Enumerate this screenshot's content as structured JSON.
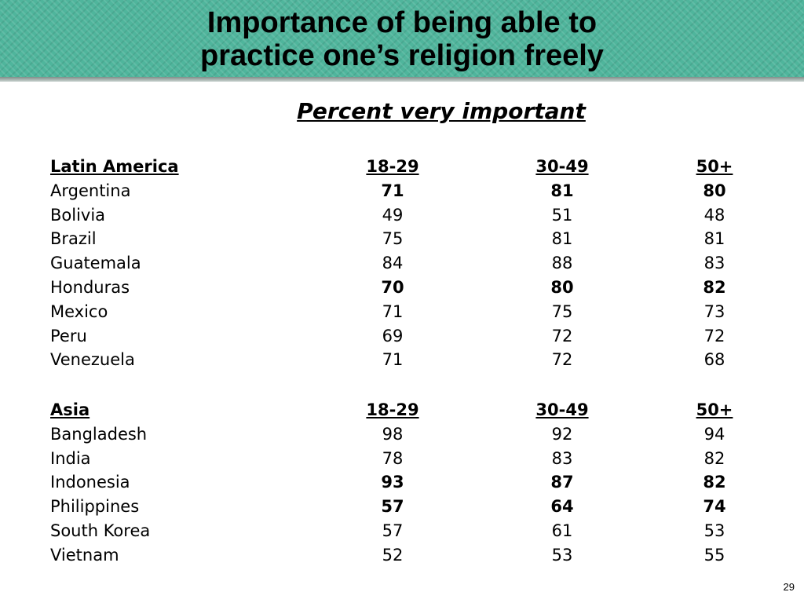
{
  "title": {
    "line1": "Importance of being able to",
    "line2": "practice one’s religion freely"
  },
  "subtitle": "Percent very important",
  "sections": [
    {
      "region": "Latin America",
      "columns": [
        "18-29",
        "30-49",
        "50+"
      ],
      "rows": [
        {
          "country": "Argentina",
          "values": [
            "71",
            "81",
            "80"
          ],
          "bold": true
        },
        {
          "country": "Bolivia",
          "values": [
            "49",
            "51",
            "48"
          ],
          "bold": false
        },
        {
          "country": "Brazil",
          "values": [
            "75",
            "81",
            "81"
          ],
          "bold": false
        },
        {
          "country": "Guatemala",
          "values": [
            "84",
            "88",
            "83"
          ],
          "bold": false
        },
        {
          "country": "Honduras",
          "values": [
            "70",
            "80",
            "82"
          ],
          "bold": true
        },
        {
          "country": "Mexico",
          "values": [
            "71",
            "75",
            "73"
          ],
          "bold": false
        },
        {
          "country": "Peru",
          "values": [
            "69",
            "72",
            "72"
          ],
          "bold": false
        },
        {
          "country": "Venezuela",
          "values": [
            "71",
            "72",
            "68"
          ],
          "bold": false
        }
      ]
    },
    {
      "region": "Asia",
      "columns": [
        "18-29",
        "30-49",
        "50+"
      ],
      "rows": [
        {
          "country": "Bangladesh",
          "values": [
            "98",
            "92",
            "94"
          ],
          "bold": false
        },
        {
          "country": "India",
          "values": [
            "78",
            "83",
            "82"
          ],
          "bold": false
        },
        {
          "country": "Indonesia",
          "values": [
            "93",
            "87",
            "82"
          ],
          "bold": true
        },
        {
          "country": "Philippines",
          "values": [
            "57",
            "64",
            "74"
          ],
          "bold": true
        },
        {
          "country": "South Korea",
          "values": [
            "57",
            "61",
            "53"
          ],
          "bold": false
        },
        {
          "country": "Vietnam",
          "values": [
            "52",
            "53",
            "55"
          ],
          "bold": false
        }
      ]
    }
  ],
  "page_number": "29"
}
